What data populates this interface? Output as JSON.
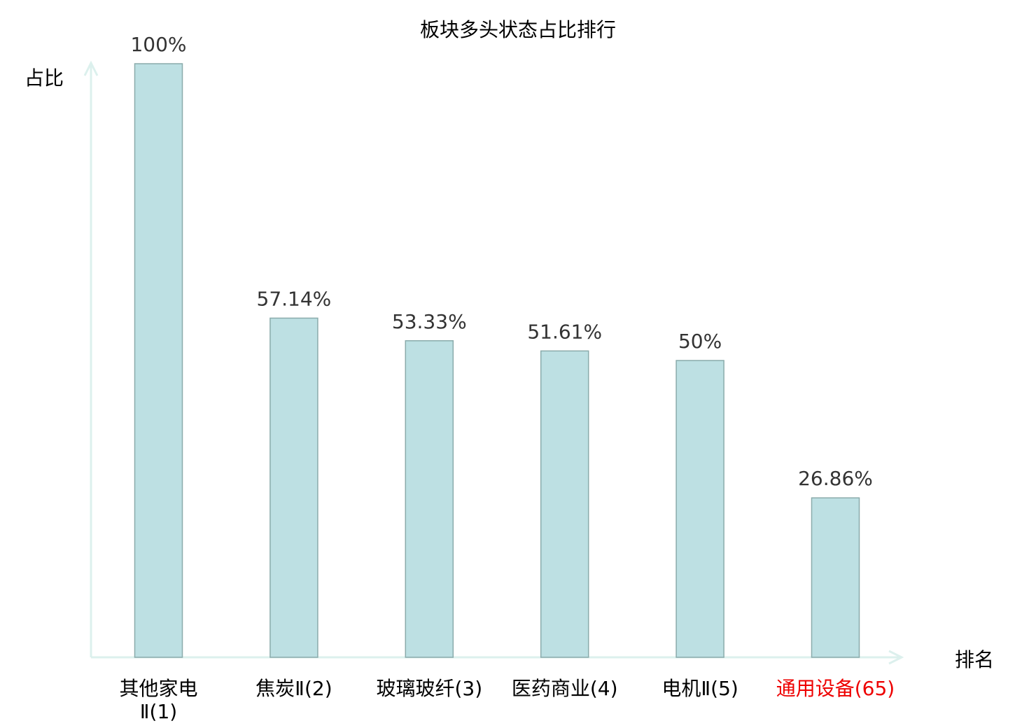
{
  "chart_data": {
    "type": "bar",
    "title": "板块多头状态占比排行",
    "ylabel": "占比",
    "xlabel": "排名",
    "ylim": [
      0,
      100
    ],
    "grid": false,
    "categories": [
      "其他家电Ⅱ(1)",
      "焦炭Ⅱ(2)",
      "玻璃玻纤(3)",
      "医药商业(4)",
      "电机Ⅱ(5)",
      "通用设备(65)"
    ],
    "category_lines": [
      [
        "其他家电",
        "Ⅱ(1)"
      ],
      [
        "焦炭Ⅱ(2)"
      ],
      [
        "玻璃玻纤(3)"
      ],
      [
        "医药商业(4)"
      ],
      [
        "电机Ⅱ(5)"
      ],
      [
        "通用设备(65)"
      ]
    ],
    "values": [
      100,
      57.14,
      53.33,
      51.61,
      50,
      26.86
    ],
    "data_labels": [
      "100%",
      "57.14%",
      "53.33%",
      "51.61%",
      "50%",
      "26.86%"
    ],
    "highlight_index": 5,
    "colors": {
      "bar_fill": "#bde0e3",
      "bar_stroke": "#8aabab",
      "axis": "#dcf0ed",
      "label": "#000000",
      "highlight": "#ee0000",
      "data_label": "#333333"
    }
  }
}
